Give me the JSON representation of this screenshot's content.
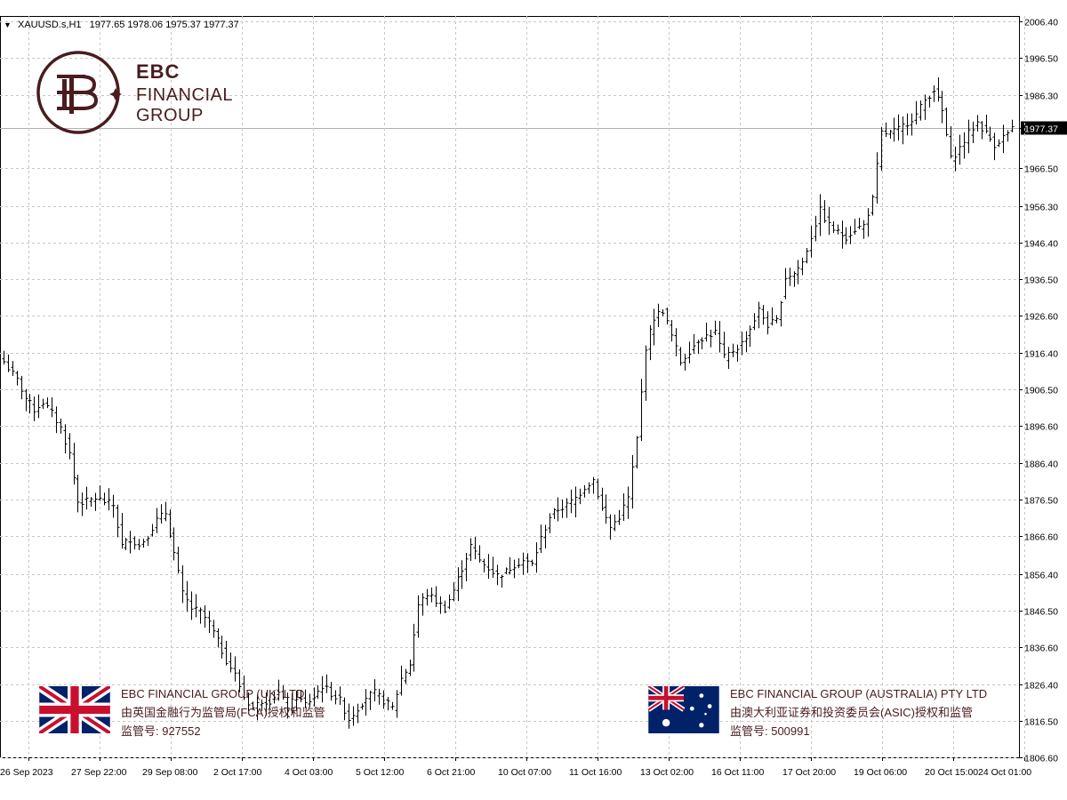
{
  "header": {
    "symbol": "XAUUSD.s,H1",
    "ohlc": "1977.65 1978.06 1975.37 1977.37",
    "dropdown_icon": "triangle-down-icon"
  },
  "logo": {
    "line1": "EBC",
    "line2": "FINANCIAL",
    "line3": "GROUP",
    "icon": "ebc-monogram-logo",
    "color": "#4a1c1f"
  },
  "regulators": [
    {
      "flag": "uk-flag-icon",
      "name": "EBC FINANCIAL GROUP (UK) LTD",
      "authority": "由英国金融行为监管局(FCA)授权和监管",
      "license": "监管号: 927552"
    },
    {
      "flag": "australia-flag-icon",
      "name": "EBC FINANCIAL GROUP (AUSTRALIA) PTY LTD",
      "authority": "由澳大利亚证券和投资委员会(ASIC)授权和监管",
      "license": "监管号: 500991"
    }
  ],
  "colors": {
    "background": "#ffffff",
    "grid": "#c8c8c8",
    "bars": "#000000",
    "current_price_bg": "#000000",
    "current_price_text": "#ffffff",
    "brand": "#4a1c1f"
  },
  "chart_data": {
    "type": "ohlc",
    "timeframe": "H1",
    "symbol": "XAUUSD.s",
    "ylim": [
      1806.6,
      2006.4
    ],
    "grid": true,
    "y_ticks": [
      "2006.40",
      "1996.50",
      "1986.30",
      "1977.37",
      "1966.50",
      "1956.30",
      "1946.40",
      "1936.50",
      "1926.60",
      "1916.40",
      "1906.50",
      "1896.60",
      "1886.40",
      "1876.50",
      "1866.60",
      "1856.40",
      "1846.50",
      "1836.60",
      "1826.40",
      "1816.50",
      "1806.60"
    ],
    "current_price": 1977.37,
    "x_ticks": [
      "26 Sep 2023",
      "27 Sep 22:00",
      "29 Sep 08:00",
      "2 Oct 17:00",
      "4 Oct 03:00",
      "5 Oct 12:00",
      "6 Oct 21:00",
      "10 Oct 07:00",
      "11 Oct 16:00",
      "13 Oct 02:00",
      "16 Oct 11:00",
      "17 Oct 20:00",
      "19 Oct 06:00",
      "20 Oct 15:00",
      "24 Oct 01:00"
    ],
    "close_path": [
      [
        0,
        1914
      ],
      [
        3,
        1909
      ],
      [
        5,
        1904
      ],
      [
        7,
        1901
      ],
      [
        9,
        1903
      ],
      [
        11,
        1900
      ],
      [
        13,
        1896
      ],
      [
        15,
        1889
      ],
      [
        17,
        1876
      ],
      [
        19,
        1876
      ],
      [
        21,
        1877
      ],
      [
        23,
        1876
      ],
      [
        25,
        1875
      ],
      [
        27,
        1864
      ],
      [
        29,
        1866
      ],
      [
        31,
        1864
      ],
      [
        33,
        1867
      ],
      [
        35,
        1871
      ],
      [
        37,
        1873
      ],
      [
        39,
        1862
      ],
      [
        41,
        1851
      ],
      [
        43,
        1847
      ],
      [
        45,
        1846
      ],
      [
        47,
        1843
      ],
      [
        49,
        1838
      ],
      [
        51,
        1833
      ],
      [
        53,
        1829
      ],
      [
        55,
        1823
      ],
      [
        57,
        1820
      ],
      [
        59,
        1822
      ],
      [
        61,
        1822
      ],
      [
        63,
        1824
      ],
      [
        65,
        1820
      ],
      [
        67,
        1823
      ],
      [
        69,
        1821
      ],
      [
        71,
        1823
      ],
      [
        73,
        1826
      ],
      [
        75,
        1824
      ],
      [
        77,
        1822
      ],
      [
        79,
        1817
      ],
      [
        81,
        1820
      ],
      [
        83,
        1823
      ],
      [
        85,
        1824
      ],
      [
        87,
        1822
      ],
      [
        89,
        1820
      ],
      [
        91,
        1828
      ],
      [
        93,
        1832
      ],
      [
        95,
        1848
      ],
      [
        97,
        1851
      ],
      [
        99,
        1849
      ],
      [
        101,
        1847
      ],
      [
        103,
        1852
      ],
      [
        105,
        1858
      ],
      [
        107,
        1864
      ],
      [
        109,
        1860
      ],
      [
        111,
        1858
      ],
      [
        113,
        1856
      ],
      [
        115,
        1857
      ],
      [
        117,
        1859
      ],
      [
        119,
        1860
      ],
      [
        121,
        1859
      ],
      [
        123,
        1866
      ],
      [
        125,
        1872
      ],
      [
        127,
        1874
      ],
      [
        129,
        1875
      ],
      [
        131,
        1877
      ],
      [
        133,
        1880
      ],
      [
        135,
        1882
      ],
      [
        137,
        1874
      ],
      [
        139,
        1869
      ],
      [
        141,
        1872
      ],
      [
        143,
        1877
      ],
      [
        145,
        1893
      ],
      [
        147,
        1918
      ],
      [
        149,
        1926
      ],
      [
        151,
        1928
      ],
      [
        153,
        1921
      ],
      [
        155,
        1914
      ],
      [
        157,
        1917
      ],
      [
        159,
        1920
      ],
      [
        161,
        1921
      ],
      [
        163,
        1922
      ],
      [
        165,
        1915
      ],
      [
        167,
        1917
      ],
      [
        169,
        1919
      ],
      [
        171,
        1923
      ],
      [
        173,
        1928
      ],
      [
        175,
        1924
      ],
      [
        177,
        1925
      ],
      [
        179,
        1937
      ],
      [
        181,
        1938
      ],
      [
        183,
        1941
      ],
      [
        185,
        1948
      ],
      [
        187,
        1955
      ],
      [
        189,
        1951
      ],
      [
        191,
        1949
      ],
      [
        193,
        1948
      ],
      [
        195,
        1950
      ],
      [
        197,
        1951
      ],
      [
        199,
        1958
      ],
      [
        201,
        1976
      ],
      [
        203,
        1976
      ],
      [
        205,
        1977
      ],
      [
        207,
        1979
      ],
      [
        209,
        1981
      ],
      [
        211,
        1985
      ],
      [
        213,
        1988
      ],
      [
        215,
        1982
      ],
      [
        217,
        1969
      ],
      [
        219,
        1972
      ],
      [
        221,
        1976
      ],
      [
        223,
        1979
      ],
      [
        225,
        1976
      ],
      [
        227,
        1973
      ],
      [
        229,
        1975
      ],
      [
        231,
        1977
      ]
    ],
    "bar_count": 232
  }
}
